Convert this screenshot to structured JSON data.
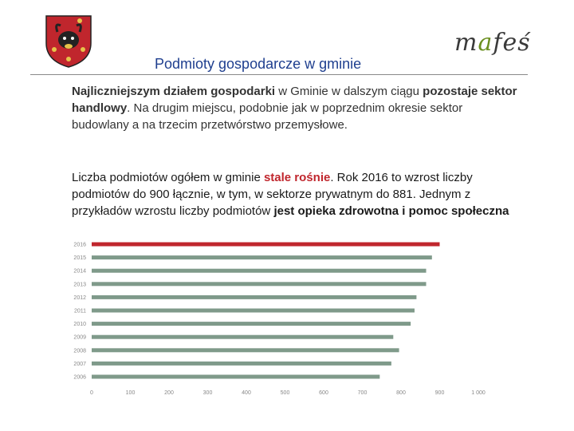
{
  "header": {
    "title": "Podmioty gospodarcze w gminie",
    "logo_prefix": "m",
    "logo_accent": "a",
    "logo_suffix": "feś",
    "logo_accent_color": "#6b8f1f"
  },
  "text": {
    "p1_bold": "Najliczniejszym działem gospodarki",
    "p1_mid": " w Gminie w dalszym ciągu ",
    "p1_bold2": "pozostaje sektor handlowy",
    "p1_rest": ". Na drugim miejscu, podobnie jak w poprzednim okresie sektor budowlany a na trzecim przetwórstwo przemysłowe.",
    "p2_a": "Liczba podmiotów ogółem w gminie ",
    "p2_red": "stale rośnie",
    "p2_b": ". Rok 2016 to wzrost liczby podmiotów do 900 łącznie, w tym, w sektorze prywatnym do 881. Jednym z przykładów wzrostu liczby podmiotów ",
    "p2_bold": "jest opieka zdrowotna i pomoc społeczna"
  },
  "chart_data": {
    "type": "bar",
    "orientation": "horizontal",
    "categories": [
      "2016",
      "2015",
      "2014",
      "2013",
      "2012",
      "2011",
      "2010",
      "2009",
      "2008",
      "2007",
      "2006"
    ],
    "values": [
      900,
      880,
      865,
      865,
      840,
      835,
      825,
      780,
      795,
      775,
      745
    ],
    "highlight_index": 0,
    "highlight_color": "#c0262d",
    "bar_color": "#7f9a8a",
    "xlim": [
      0,
      1000
    ],
    "xticks": [
      "0",
      "100",
      "200",
      "300",
      "400",
      "500",
      "600",
      "700",
      "800",
      "900",
      "1 000"
    ]
  }
}
